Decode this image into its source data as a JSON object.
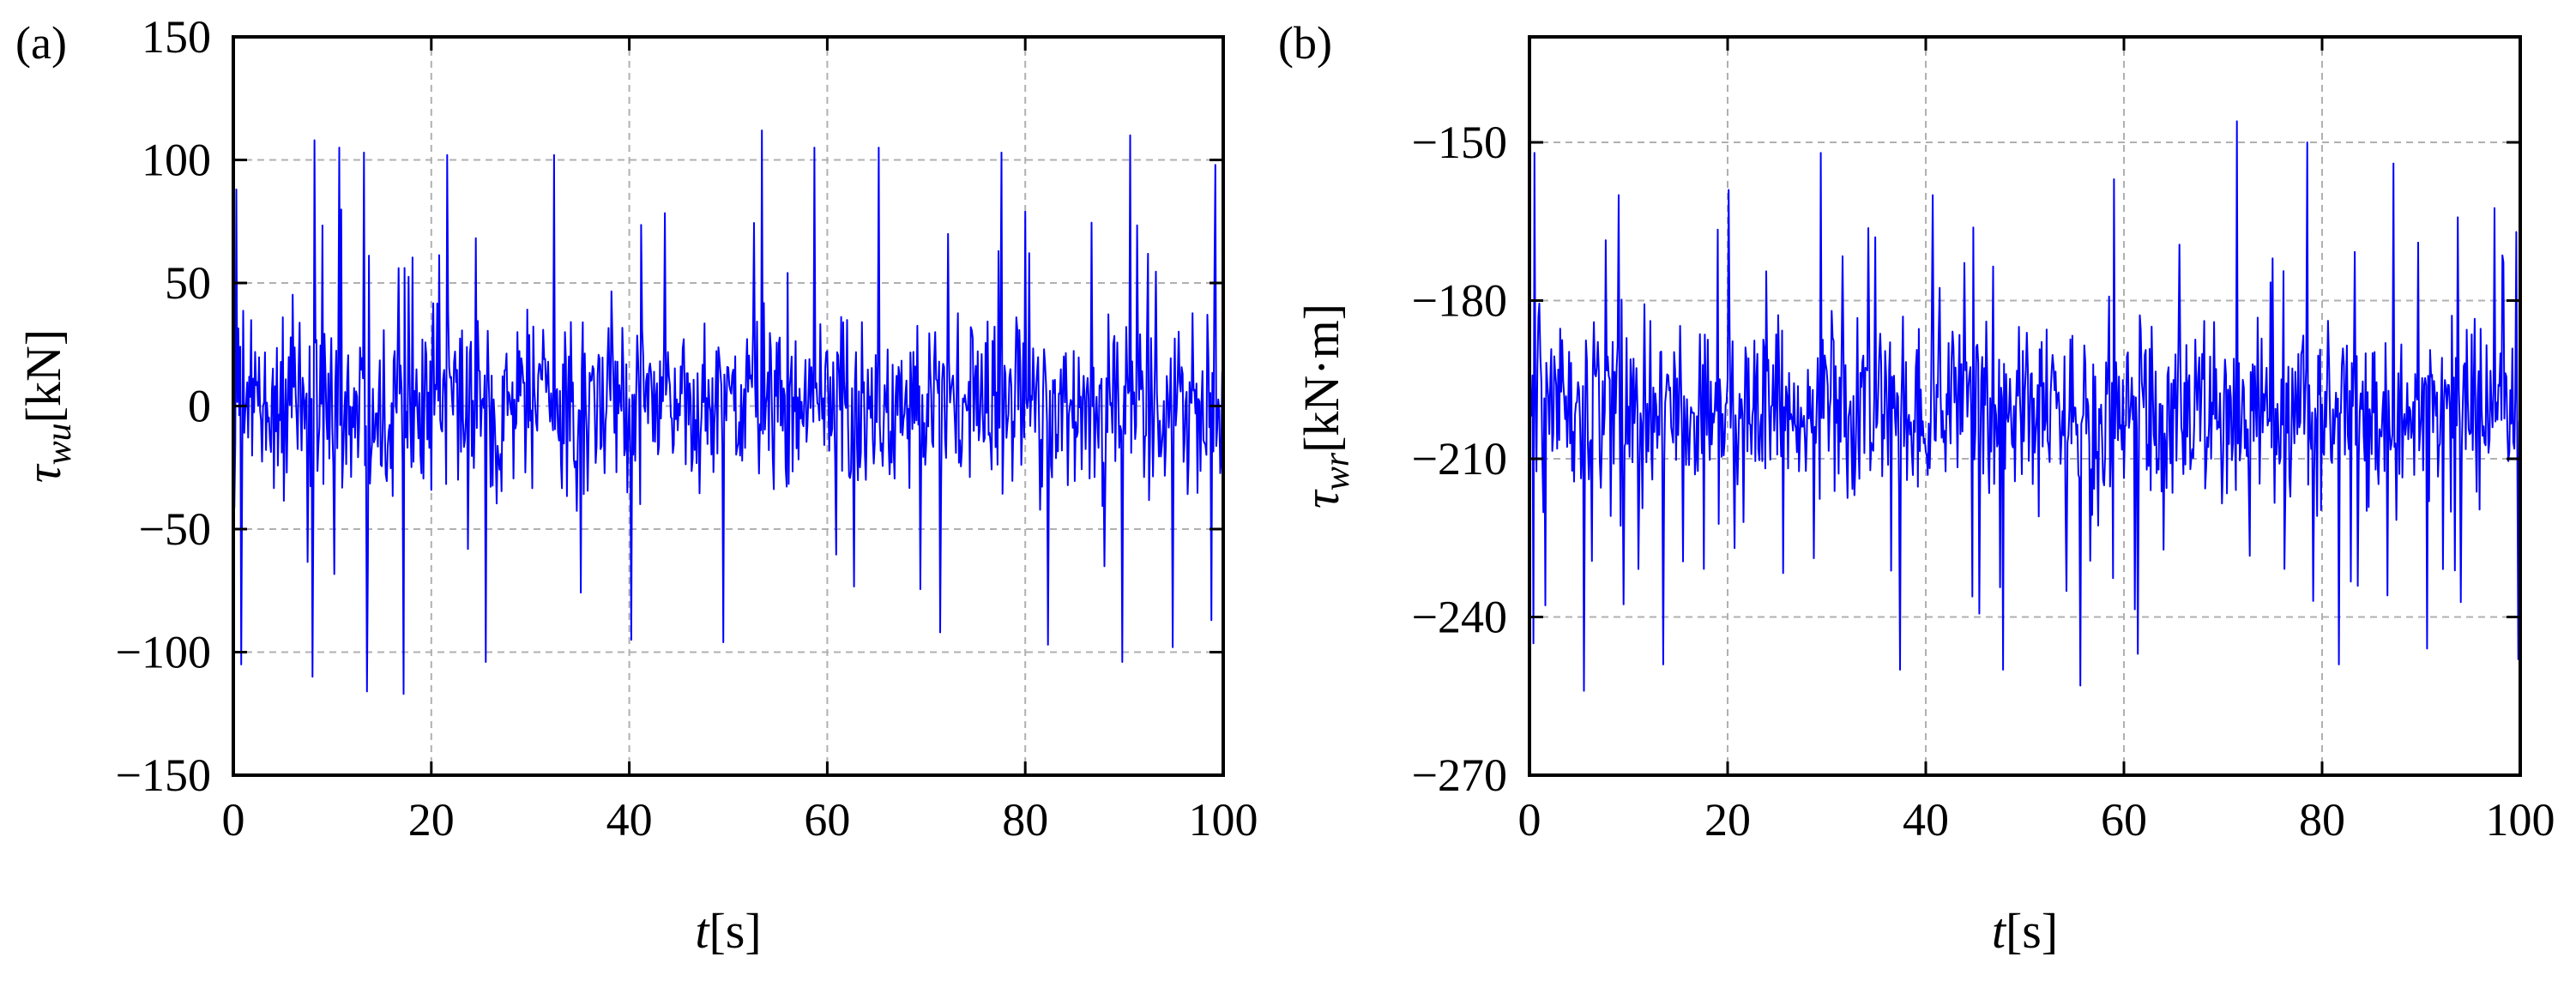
{
  "chart_data": [
    {
      "type": "line",
      "panel_label": "(a)",
      "xlabel_italic": "t",
      "xlabel_unit": "[s]",
      "ylabel_symbol": "τ",
      "ylabel_sub": "wu",
      "ylabel_unit": "[kN]",
      "xlim": [
        0,
        100
      ],
      "ylim": [
        -150,
        150
      ],
      "x_ticks": [
        0,
        20,
        40,
        60,
        80,
        100
      ],
      "y_ticks": [
        -150,
        -100,
        -50,
        0,
        50,
        100,
        150
      ],
      "grid": true,
      "color": "#0000ff",
      "series": [
        {
          "sample_interval": 0.1,
          "x_range": [
            0,
            100
          ],
          "mean": 0,
          "typical_band": [
            -50,
            50
          ],
          "peaks": [
            [
              0.3,
              88
            ],
            [
              8.2,
              108
            ],
            [
              10.7,
              105
            ],
            [
              13.2,
              103
            ],
            [
              21.6,
              102
            ],
            [
              32.4,
              102
            ],
            [
              53.4,
              112
            ],
            [
              58.7,
              105
            ],
            [
              65.2,
              105
            ],
            [
              77.6,
              103
            ],
            [
              90.6,
              110
            ],
            [
              99.2,
              98
            ]
          ],
          "troughs": [
            [
              0.8,
              -105
            ],
            [
              8.0,
              -110
            ],
            [
              13.5,
              -116
            ],
            [
              17.2,
              -117
            ],
            [
              25.5,
              -104
            ],
            [
              40.2,
              -95
            ],
            [
              49.5,
              -96
            ],
            [
              71.4,
              -92
            ],
            [
              82.3,
              -97
            ],
            [
              89.8,
              -104
            ],
            [
              94.9,
              -98
            ],
            [
              98.8,
              -87
            ]
          ]
        }
      ]
    },
    {
      "type": "line",
      "panel_label": "(b)",
      "xlabel_italic": "t",
      "xlabel_unit": "[s]",
      "ylabel_symbol": "τ",
      "ylabel_sub": "wr",
      "ylabel_unit": "[kN·m]",
      "xlim": [
        0,
        100
      ],
      "ylim": [
        -270,
        -130
      ],
      "x_ticks": [
        0,
        20,
        40,
        60,
        80,
        100
      ],
      "y_ticks": [
        -270,
        -240,
        -210,
        -180,
        -150
      ],
      "grid": true,
      "color": "#0000ff",
      "series": [
        {
          "sample_interval": 0.1,
          "x_range": [
            0,
            100
          ],
          "mean": -200,
          "typical_band": [
            -225,
            -176
          ],
          "peaks": [
            [
              0.5,
              -152
            ],
            [
              9.0,
              -160
            ],
            [
              20.1,
              -159
            ],
            [
              29.4,
              -152
            ],
            [
              40.7,
              -160
            ],
            [
              59.0,
              -157
            ],
            [
              71.4,
              -146
            ],
            [
              78.5,
              -150
            ],
            [
              87.2,
              -154
            ],
            [
              99.6,
              -167
            ]
          ],
          "troughs": [
            [
              0.4,
              -245
            ],
            [
              5.5,
              -254
            ],
            [
              13.5,
              -249
            ],
            [
              37.4,
              -250
            ],
            [
              47.8,
              -250
            ],
            [
              55.6,
              -253
            ],
            [
              61.4,
              -247
            ],
            [
              81.7,
              -249
            ],
            [
              90.6,
              -246
            ],
            [
              99.8,
              -248
            ]
          ]
        }
      ]
    }
  ]
}
